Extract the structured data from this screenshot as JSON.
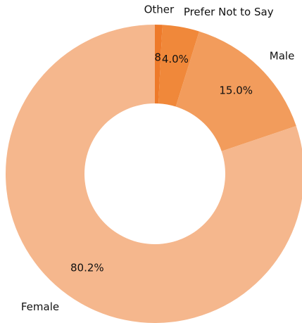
{
  "chart_data": {
    "type": "donut",
    "categories": [
      "Other",
      "Prefer Not to Say",
      "Male",
      "Female"
    ],
    "values": [
      0.8,
      4.0,
      15.0,
      80.2
    ],
    "value_labels": [
      "0.8%",
      "4.0%",
      "15.0%",
      "80.2%"
    ],
    "colors": [
      "#ee7a2a",
      "#f0883a",
      "#f29c5c",
      "#f5b78d"
    ]
  }
}
